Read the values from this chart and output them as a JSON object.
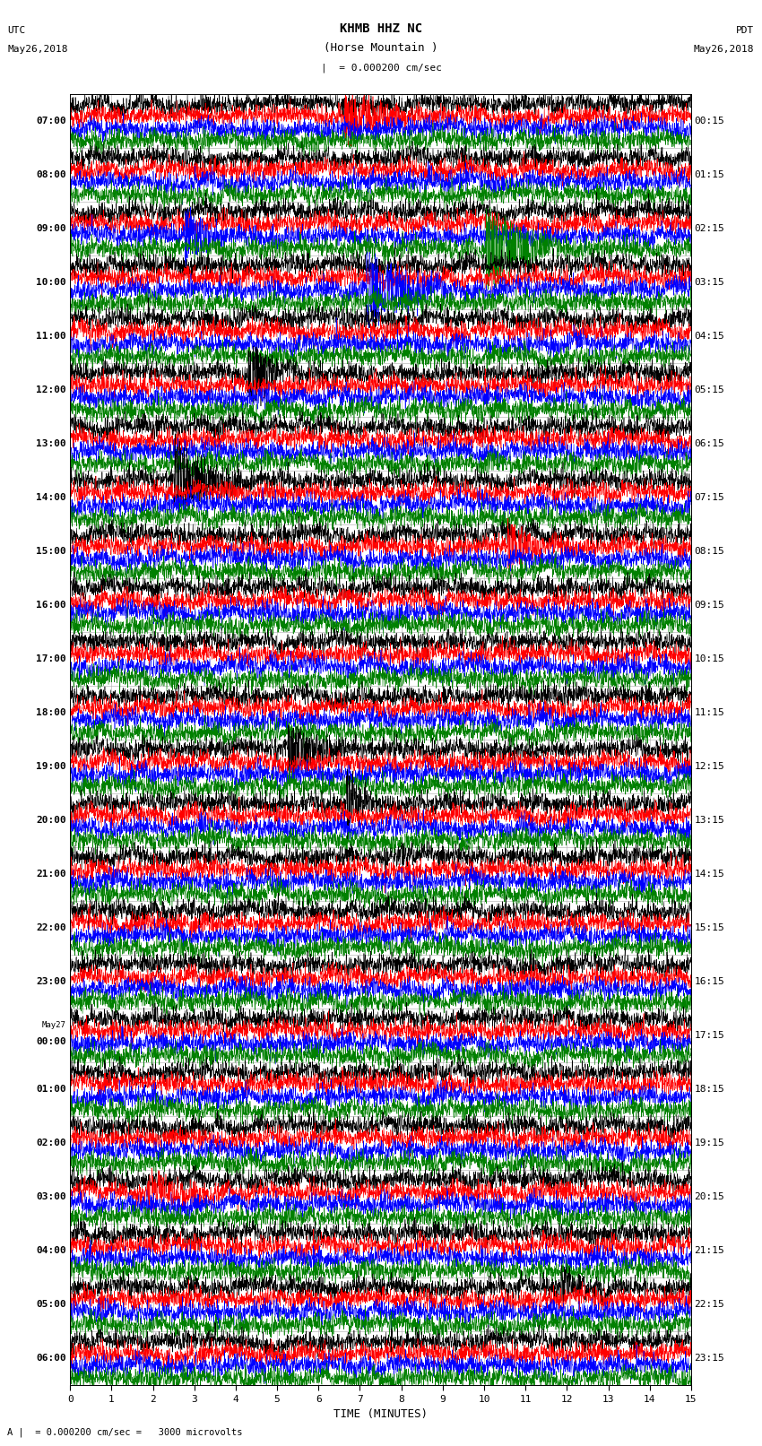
{
  "title_line1": "KHMB HHZ NC",
  "title_line2": "(Horse Mountain )",
  "scale_text": "= 0.000200 cm/sec",
  "footer_text": "= 0.000200 cm/sec =   3000 microvolts",
  "utc_label": "UTC",
  "utc_date": "May26,2018",
  "pdt_label": "PDT",
  "pdt_date": "May26,2018",
  "xlabel": "TIME (MINUTES)",
  "xmin": 0,
  "xmax": 15,
  "trace_colors": [
    "black",
    "red",
    "blue",
    "green"
  ],
  "left_times": [
    "07:00",
    "08:00",
    "09:00",
    "10:00",
    "11:00",
    "12:00",
    "13:00",
    "14:00",
    "15:00",
    "16:00",
    "17:00",
    "18:00",
    "19:00",
    "20:00",
    "21:00",
    "22:00",
    "23:00",
    "00:00",
    "01:00",
    "02:00",
    "03:00",
    "04:00",
    "05:00",
    "06:00"
  ],
  "may27_row_idx": 17,
  "right_times": [
    "00:15",
    "01:15",
    "02:15",
    "03:15",
    "04:15",
    "05:15",
    "06:15",
    "07:15",
    "08:15",
    "09:15",
    "10:15",
    "11:15",
    "12:15",
    "13:15",
    "14:15",
    "15:15",
    "16:15",
    "17:15",
    "18:15",
    "19:15",
    "20:15",
    "21:15",
    "22:15",
    "23:15"
  ],
  "n_rows": 24,
  "traces_per_row": 4,
  "bg_color": "#ffffff",
  "grid_color": "#aaaaaa",
  "fig_width": 8.5,
  "fig_height": 16.13,
  "dpi": 100,
  "trace_amp": 0.09,
  "trace_sep": 0.23,
  "lw": 0.4
}
